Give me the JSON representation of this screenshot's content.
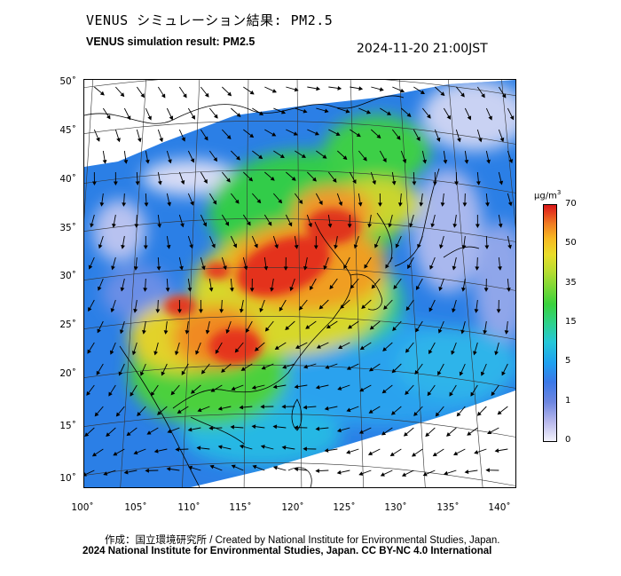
{
  "header": {
    "title_jp": "VENUS シミュレーション結果: PM2.5",
    "title_en": "VENUS simulation result: PM2.5",
    "timestamp": "2024-11-20 21:00JST"
  },
  "map": {
    "lat_labels": [
      "50˚",
      "45˚",
      "40˚",
      "35˚",
      "30˚",
      "25˚",
      "20˚",
      "15˚",
      "10˚"
    ],
    "lon_labels": [
      "100˚",
      "105˚",
      "110˚",
      "115˚",
      "120˚",
      "125˚",
      "130˚",
      "135˚",
      "140˚"
    ],
    "variable": "PM2.5",
    "wind_vectors": "shown"
  },
  "colorbar": {
    "unit_base": "µg/m",
    "unit_exp": "3",
    "ticks": [
      "70",
      "50",
      "35",
      "15",
      "5",
      "1",
      "0"
    ],
    "colors": [
      "#f2f2fb",
      "#6e86e0",
      "#1fa0f0",
      "#2ed28a",
      "#b9dd30",
      "#f07d22",
      "#d81818"
    ]
  },
  "footer": {
    "credit_line": "作成：国立環境研究所 / Created by National Institute for Environmental Studies, Japan.",
    "copyright_line": "2024 National Institute for Environmental Studies, Japan. CC BY-NC 4.0 International"
  }
}
